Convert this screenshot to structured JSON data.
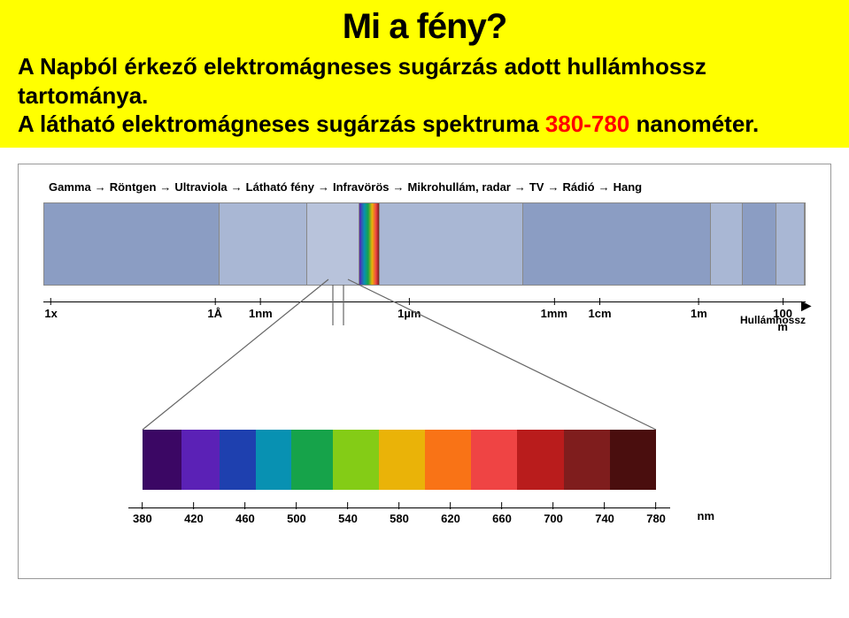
{
  "header": {
    "title": "Mi a fény?",
    "line1_pre": "A Napból érkező elektromágneses sugárzás adott hullámhossz tartománya.",
    "line2_pre": "A látható elektromágneses sugárzás spektruma ",
    "range": "380-780",
    "line2_post": " nanométer."
  },
  "top_labels": [
    "Gamma",
    "Röntgen",
    "Ultraviola",
    "Látható fény",
    "Infravörös",
    "Mikrohullám, radar",
    "TV",
    "Rádió",
    "Hang"
  ],
  "bands": [
    {
      "w": 23.2,
      "color": "#8b9dc3"
    },
    {
      "w": 11.5,
      "color": "#a9b7d4"
    },
    {
      "w": 6.8,
      "color": "#b8c3db"
    },
    {
      "w": 2.6,
      "color": "#ffffff",
      "visible": true
    },
    {
      "w": 19.0,
      "color": "#a9b7d4"
    },
    {
      "w": 24.8,
      "color": "#8b9dc3"
    },
    {
      "w": 4.1,
      "color": "#a9b7d4"
    },
    {
      "w": 4.4,
      "color": "#8b9dc3"
    },
    {
      "w": 3.6,
      "color": "#a9b7d4"
    }
  ],
  "scale_ticks": [
    {
      "pos": 1,
      "label": "1x"
    },
    {
      "pos": 22.5,
      "label": "1Å"
    },
    {
      "pos": 28.5,
      "label": "1nm"
    },
    {
      "pos": 48,
      "label": "1µm"
    },
    {
      "pos": 67,
      "label": "1mm"
    },
    {
      "pos": 73,
      "label": "1cm"
    },
    {
      "pos": 86,
      "label": "1m"
    },
    {
      "pos": 97,
      "label": "100 m"
    }
  ],
  "wavelength_label": "Hullámhossz",
  "spectrum_segments": [
    {
      "w": 7.5,
      "color": "#3b0764"
    },
    {
      "w": 7.5,
      "color": "#5b21b6"
    },
    {
      "w": 7.0,
      "color": "#1e40af"
    },
    {
      "w": 7.0,
      "color": "#0891b2"
    },
    {
      "w": 8.0,
      "color": "#16a34a"
    },
    {
      "w": 9.0,
      "color": "#84cc16"
    },
    {
      "w": 9.0,
      "color": "#eab308"
    },
    {
      "w": 9.0,
      "color": "#f97316"
    },
    {
      "w": 9.0,
      "color": "#ef4444"
    },
    {
      "w": 9.0,
      "color": "#b91c1c"
    },
    {
      "w": 9.0,
      "color": "#7f1d1d"
    },
    {
      "w": 9.0,
      "color": "#4a0e0e"
    }
  ],
  "spectrum_ticks": [
    "380",
    "420",
    "460",
    "500",
    "540",
    "580",
    "620",
    "660",
    "700",
    "740",
    "780"
  ],
  "nm_label": "nm",
  "colors": {
    "header_bg": "#ffff00",
    "text": "#000000",
    "accent": "#ff0000",
    "border": "#999999"
  }
}
